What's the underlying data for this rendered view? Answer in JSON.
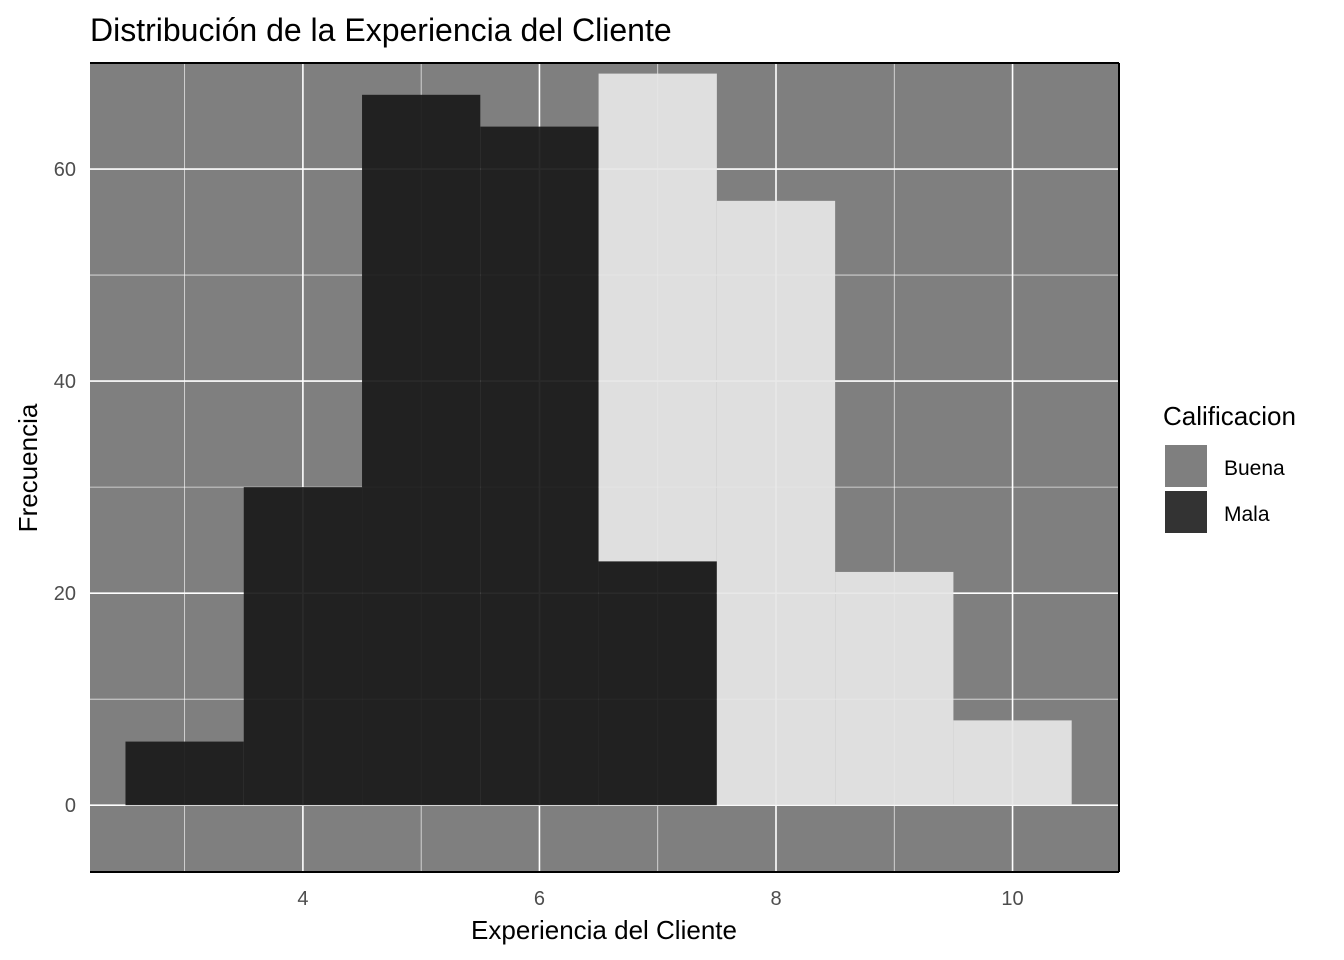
{
  "chart_data": {
    "type": "bar",
    "title": "Distribución de la Experiencia del Cliente",
    "xlabel": "Experiencia del Cliente",
    "ylabel": "Frecuencia",
    "xlim": [
      2.2,
      10.9
    ],
    "ylim": [
      -6.3,
      70
    ],
    "x_ticks": [
      4,
      6,
      8,
      10
    ],
    "y_ticks": [
      0,
      20,
      40,
      60
    ],
    "grid": true,
    "bin_width": 1,
    "bins": [
      3,
      4,
      5,
      6,
      7,
      8,
      9,
      10
    ],
    "series": [
      {
        "name": "Mala",
        "color": "#1a1a1a",
        "values": [
          6,
          30,
          67,
          64,
          23,
          0,
          0,
          0
        ]
      },
      {
        "name": "Buena",
        "color": "#e6e6e6",
        "values": [
          0,
          0,
          0,
          0,
          46,
          57,
          22,
          8
        ]
      }
    ],
    "panel_background": "#7f7f7f",
    "grid_color": "#ffffff",
    "legend": {
      "title": "Calificacion",
      "position": "right",
      "items": [
        {
          "label": "Buena",
          "swatch": "#7f7f7f"
        },
        {
          "label": "Mala",
          "swatch": "#333333"
        }
      ]
    }
  }
}
